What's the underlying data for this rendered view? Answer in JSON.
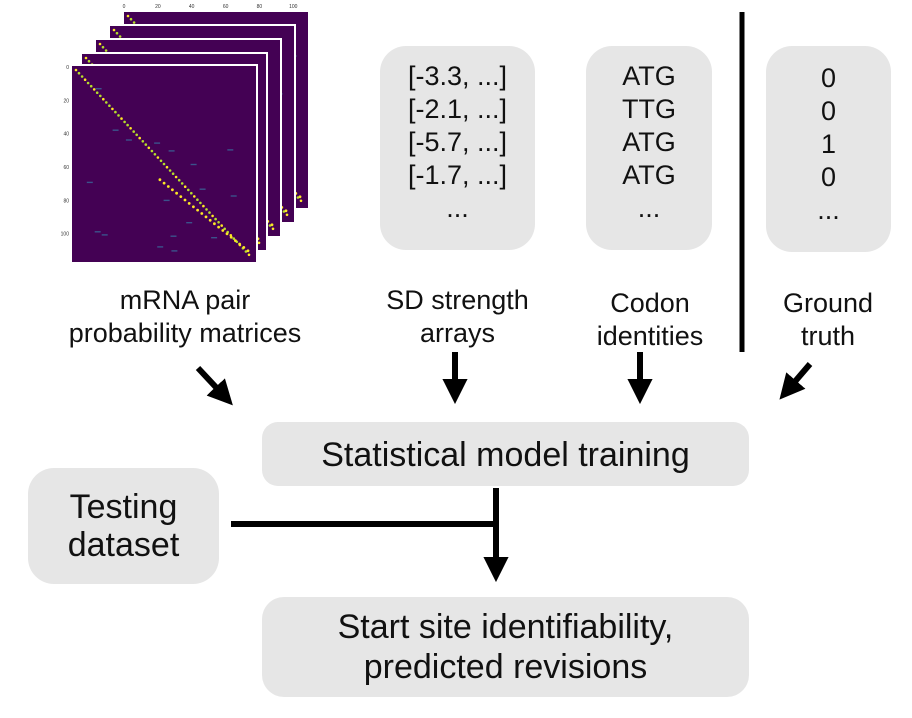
{
  "inputs": {
    "matrices": {
      "label_line1": "mRNA pair",
      "label_line2": "probability matrices",
      "axis_ticks_x": [
        "0",
        "20",
        "40",
        "60",
        "80",
        "100"
      ],
      "axis_ticks_y": [
        "0",
        "20",
        "40",
        "60",
        "80",
        "100"
      ],
      "colors": {
        "background": "#440154",
        "mid": "#3b528b",
        "high": "#fde725"
      }
    },
    "sd_strength": {
      "items": [
        "[-3.3, ...]",
        "[-2.1, ...]",
        "[-5.7, ...]",
        "[-1.7, ...]",
        "..."
      ],
      "label_line1": "SD strength",
      "label_line2": "arrays"
    },
    "codons": {
      "items": [
        "ATG",
        "TTG",
        "ATG",
        "ATG",
        "..."
      ],
      "label_line1": "Codon",
      "label_line2": "identities"
    },
    "ground_truth": {
      "items": [
        "0",
        "0",
        "1",
        "0",
        "..."
      ],
      "label_line1": "Ground",
      "label_line2": "truth"
    }
  },
  "training": {
    "label": "Statistical model training"
  },
  "testing": {
    "line1": "Testing",
    "line2": "dataset"
  },
  "output": {
    "line1": "Start site identifiability,",
    "line2": "predicted revisions"
  },
  "colors": {
    "box_fill": "#e6e6e6",
    "arrow": "#000000"
  }
}
